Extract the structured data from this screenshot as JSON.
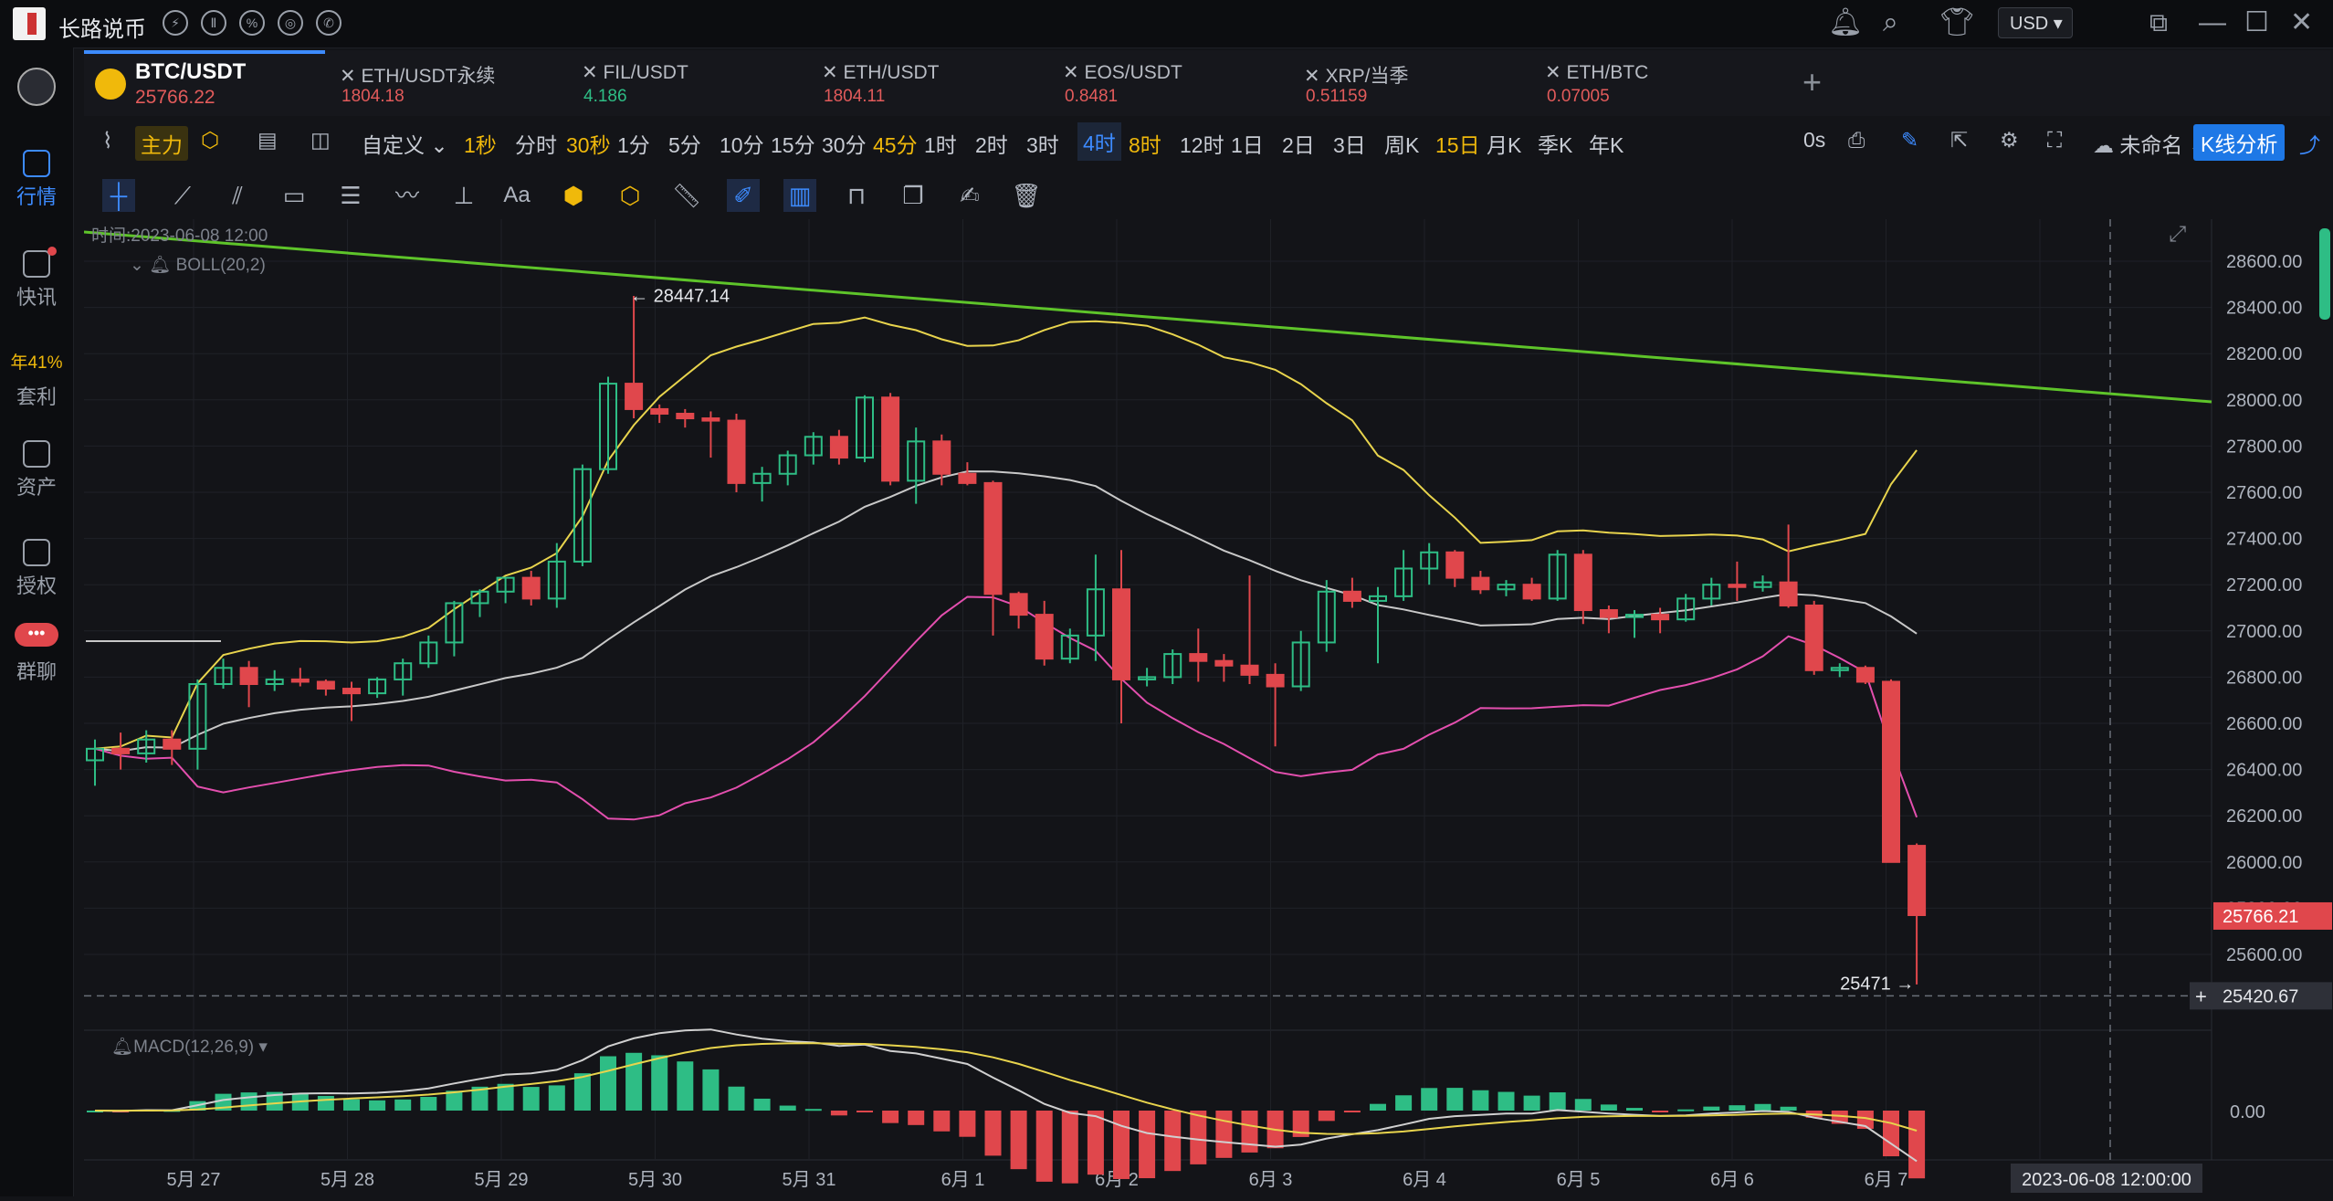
{
  "app": {
    "title": "长路说币"
  },
  "topbar": {
    "currency": "USD",
    "header_icons": [
      "bolt-icon",
      "pause-icon",
      "shield-icon",
      "compass-icon",
      "phone-icon"
    ]
  },
  "sidebar": {
    "items": [
      {
        "label": "行情",
        "icon": "market-icon",
        "active": true
      },
      {
        "label": "快讯",
        "icon": "news-icon"
      },
      {
        "label": "套利",
        "icon": "arbitrage-icon",
        "badge": "年41%"
      },
      {
        "label": "资产",
        "icon": "wallet-icon"
      },
      {
        "label": "授权",
        "icon": "authorize-icon"
      },
      {
        "label": "群聊",
        "icon": "chat-icon",
        "badge": "•••"
      }
    ]
  },
  "tabs": [
    {
      "name": "BTC/USDT",
      "price": "25766.22",
      "active": true
    },
    {
      "name": "ETH/USDT永续",
      "price": "1804.18",
      "color": "#e25b5b"
    },
    {
      "name": "FIL/USDT",
      "price": "4.186",
      "color": "#2ebd85"
    },
    {
      "name": "ETH/USDT",
      "price": "1804.11",
      "color": "#e25b5b"
    },
    {
      "name": "EOS/USDT",
      "price": "0.8481",
      "color": "#e25b5b"
    },
    {
      "name": "XRP/当季",
      "price": "0.51159",
      "color": "#e25b5b"
    },
    {
      "name": "ETH/BTC",
      "price": "0.07005",
      "color": "#e25b5b"
    }
  ],
  "toolbar": {
    "main_label": "主力",
    "custom_label": "自定义",
    "timeframes": [
      {
        "label": "1秒",
        "color": "#f0b90b"
      },
      {
        "label": "分时"
      },
      {
        "label": "30秒",
        "color": "#f0b90b"
      },
      {
        "label": "1分"
      },
      {
        "label": "5分"
      },
      {
        "label": "10分"
      },
      {
        "label": "15分"
      },
      {
        "label": "30分"
      },
      {
        "label": "45分",
        "color": "#f0b90b"
      },
      {
        "label": "1时"
      },
      {
        "label": "2时"
      },
      {
        "label": "3时"
      },
      {
        "label": "4时",
        "color": "#3d8bff",
        "active": true
      },
      {
        "label": "8时",
        "color": "#f0b90b"
      },
      {
        "label": "12时"
      },
      {
        "label": "1日"
      },
      {
        "label": "2日"
      },
      {
        "label": "3日"
      },
      {
        "label": "周K"
      },
      {
        "label": "15日",
        "color": "#f0b90b"
      },
      {
        "label": "月K"
      },
      {
        "label": "季K"
      },
      {
        "label": "年K"
      }
    ],
    "countdown": "0s",
    "unnamed_label": "未命名",
    "kline_button": "K线分析",
    "draw_text_tool": "Aa"
  },
  "chart_data": {
    "type": "candlestick",
    "pair": "BTC/USDT",
    "interval": "4时",
    "crosshair_time": "时间:2023-06-08 12:00",
    "crosshair_axis_label": "2023-06-08 12:00:00",
    "crosshair_price": "25420.67",
    "last_price": "25766.21",
    "high_label": "28447.14",
    "low_label": "25471",
    "boll_label": "BOLL(20,2)",
    "macd_label": "MACD(12,26,9)",
    "macd_zero_label": "0.00",
    "y_ticks": [
      "28600.00",
      "28400.00",
      "28200.00",
      "28000.00",
      "27800.00",
      "27600.00",
      "27400.00",
      "27200.00",
      "27000.00",
      "26800.00",
      "26600.00",
      "26400.00",
      "26200.00",
      "26000.00",
      "25800.00",
      "25600.00"
    ],
    "x_ticks": [
      "5月 27",
      "5月 28",
      "5月 29",
      "5月 30",
      "5月 31",
      "6月 1",
      "6月 2",
      "6月 3",
      "6月 4",
      "6月 5",
      "6月 6",
      "6月 7",
      "6月 8"
    ],
    "colors": {
      "up": "#2ebd85",
      "down": "#e0474c",
      "boll_upper": "#e8d44d",
      "boll_mid": "#c8c8c8",
      "boll_lower": "#e34fae",
      "trendline": "#5ec42a"
    },
    "candles": [
      [
        26440,
        26530,
        26330,
        26490
      ],
      [
        26490,
        26560,
        26400,
        26470
      ],
      [
        26470,
        26570,
        26430,
        26530
      ],
      [
        26530,
        26570,
        26420,
        26490
      ],
      [
        26490,
        26790,
        26400,
        26770
      ],
      [
        26770,
        26880,
        26750,
        26840
      ],
      [
        26840,
        26870,
        26670,
        26770
      ],
      [
        26770,
        26830,
        26740,
        26790
      ],
      [
        26790,
        26840,
        26760,
        26780
      ],
      [
        26780,
        26790,
        26720,
        26750
      ],
      [
        26750,
        26780,
        26610,
        26730
      ],
      [
        26730,
        26800,
        26710,
        26790
      ],
      [
        26790,
        26880,
        26720,
        26860
      ],
      [
        26860,
        26980,
        26840,
        26950
      ],
      [
        26950,
        27130,
        26890,
        27120
      ],
      [
        27120,
        27180,
        27060,
        27170
      ],
      [
        27170,
        27230,
        27120,
        27230
      ],
      [
        27230,
        27260,
        27110,
        27140
      ],
      [
        27140,
        27380,
        27100,
        27300
      ],
      [
        27300,
        27720,
        27280,
        27700
      ],
      [
        27700,
        28100,
        27680,
        28070
      ],
      [
        28070,
        28450,
        27920,
        27960
      ],
      [
        27960,
        27980,
        27900,
        27940
      ],
      [
        27940,
        27960,
        27880,
        27920
      ],
      [
        27920,
        27950,
        27750,
        27910
      ],
      [
        27910,
        27940,
        27600,
        27640
      ],
      [
        27640,
        27710,
        27560,
        27680
      ],
      [
        27680,
        27780,
        27630,
        27760
      ],
      [
        27760,
        27860,
        27720,
        27840
      ],
      [
        27840,
        27870,
        27720,
        27750
      ],
      [
        27750,
        28020,
        27730,
        28010
      ],
      [
        28010,
        28030,
        27630,
        27650
      ],
      [
        27650,
        27880,
        27550,
        27820
      ],
      [
        27820,
        27850,
        27630,
        27680
      ],
      [
        27680,
        27730,
        27630,
        27640
      ],
      [
        27640,
        27650,
        26980,
        27160
      ],
      [
        27160,
        27170,
        27010,
        27070
      ],
      [
        27070,
        27130,
        26850,
        26880
      ],
      [
        26880,
        27010,
        26860,
        26980
      ],
      [
        26980,
        27330,
        26870,
        27180
      ],
      [
        27180,
        27350,
        26600,
        26790
      ],
      [
        26790,
        26840,
        26760,
        26800
      ],
      [
        26800,
        26920,
        26770,
        26900
      ],
      [
        26900,
        27010,
        26780,
        26870
      ],
      [
        26870,
        26900,
        26780,
        26850
      ],
      [
        26850,
        27240,
        26770,
        26810
      ],
      [
        26810,
        26860,
        26500,
        26760
      ],
      [
        26760,
        27000,
        26740,
        26950
      ],
      [
        26950,
        27220,
        26910,
        27170
      ],
      [
        27170,
        27230,
        27100,
        27130
      ],
      [
        27130,
        27190,
        26860,
        27150
      ],
      [
        27150,
        27350,
        27130,
        27270
      ],
      [
        27270,
        27380,
        27200,
        27340
      ],
      [
        27340,
        27350,
        27190,
        27230
      ],
      [
        27230,
        27260,
        27160,
        27180
      ],
      [
        27180,
        27220,
        27150,
        27200
      ],
      [
        27200,
        27230,
        27130,
        27140
      ],
      [
        27140,
        27350,
        27130,
        27330
      ],
      [
        27330,
        27350,
        27030,
        27090
      ],
      [
        27090,
        27110,
        26990,
        27060
      ],
      [
        27060,
        27090,
        26970,
        27070
      ],
      [
        27070,
        27100,
        26990,
        27050
      ],
      [
        27050,
        27160,
        27040,
        27140
      ],
      [
        27140,
        27230,
        27110,
        27200
      ],
      [
        27200,
        27300,
        27130,
        27190
      ],
      [
        27190,
        27240,
        27170,
        27210
      ],
      [
        27210,
        27460,
        27100,
        27110
      ],
      [
        27110,
        27130,
        26810,
        26830
      ],
      [
        26830,
        26860,
        26800,
        26840
      ],
      [
        26840,
        26850,
        26770,
        26780
      ],
      [
        26780,
        26790,
        26000,
        26000
      ],
      [
        26070,
        26080,
        25470,
        25770
      ]
    ]
  }
}
